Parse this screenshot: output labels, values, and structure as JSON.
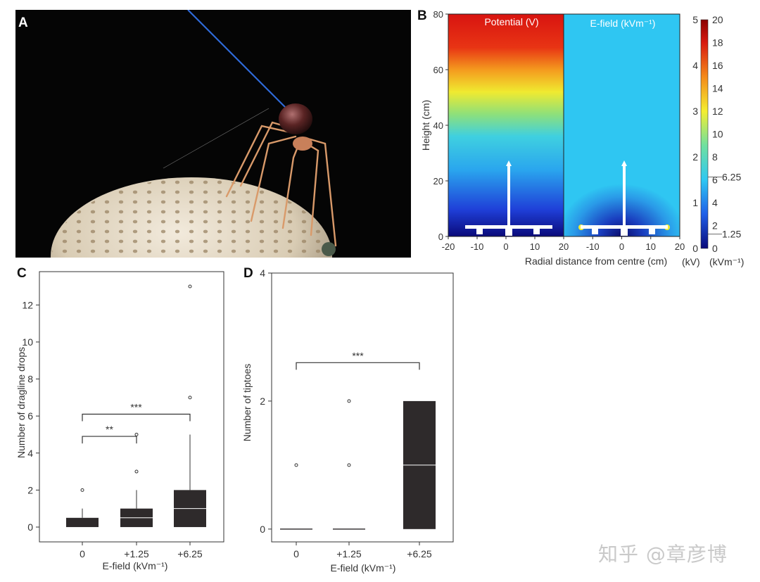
{
  "panels": {
    "a": "A",
    "b": "B",
    "c": "C",
    "d": "D"
  },
  "chart_data": [
    {
      "type": "heatmap",
      "panel": "B",
      "subplots": [
        "Potential (V)",
        "E-field (kVm⁻¹)"
      ],
      "xlabel": "Radial distance from centre (cm)",
      "ylabel": "Height (cm)",
      "x_ticks": [
        "-20",
        "-10",
        "0",
        "10",
        "20"
      ],
      "x_ticks_right": [
        "-10",
        "0",
        "10",
        "20"
      ],
      "y_ticks": [
        "0",
        "20",
        "40",
        "60",
        "80"
      ],
      "xlim": [
        -20,
        20
      ],
      "ylim": [
        0,
        80
      ],
      "colorbar": {
        "inner_ticks": [
          "0",
          "1",
          "2",
          "3",
          "4",
          "5"
        ],
        "outer_ticks": [
          "0",
          "2",
          "4",
          "6",
          "8",
          "10",
          "12",
          "14",
          "16",
          "18",
          "20"
        ],
        "marks": [
          "6.25",
          "1.25"
        ],
        "unit_left": "(kV)",
        "unit_right": "(kVm⁻¹)",
        "colors": [
          "#0a0a7a",
          "#1f5fe8",
          "#2fc8f2",
          "#8be07a",
          "#f4ee30",
          "#f48a1a",
          "#d81a10",
          "#8a0000"
        ]
      }
    },
    {
      "type": "box",
      "panel": "C",
      "ylabel": "Number of dragline drops",
      "xlabel": "E-field (kVm⁻¹)",
      "categories": [
        "0",
        "+1.25",
        "+6.25"
      ],
      "ylim": [
        -0.8,
        13.8
      ],
      "y_ticks": [
        "0",
        "2",
        "4",
        "6",
        "8",
        "10",
        "12"
      ],
      "boxes": [
        {
          "q1": 0,
          "median": 0,
          "q3": 0.5,
          "whisker_low": 0,
          "whisker_high": 1,
          "outliers": [
            2
          ]
        },
        {
          "q1": 0,
          "median": 0.5,
          "q3": 1,
          "whisker_low": 0,
          "whisker_high": 2,
          "outliers": [
            3,
            5
          ]
        },
        {
          "q1": 0,
          "median": 1,
          "q3": 2,
          "whisker_low": 0,
          "whisker_high": 5,
          "outliers": [
            7,
            13
          ]
        }
      ],
      "significance": [
        {
          "from": 0,
          "to": 1,
          "label": "**",
          "y": 4.9
        },
        {
          "from": 0,
          "to": 2,
          "label": "***",
          "y": 6.1
        }
      ]
    },
    {
      "type": "box",
      "panel": "D",
      "ylabel": "Number of tiptoes",
      "xlabel": "E-field (kVm⁻¹)",
      "categories": [
        "0",
        "+1.25",
        "+6.25"
      ],
      "ylim": [
        -0.2,
        4
      ],
      "y_ticks": [
        "0",
        "2",
        "4"
      ],
      "boxes": [
        {
          "q1": 0,
          "median": 0,
          "q3": 0,
          "whisker_low": 0,
          "whisker_high": 0,
          "outliers": [
            1
          ]
        },
        {
          "q1": 0,
          "median": 0,
          "q3": 0,
          "whisker_low": 0,
          "whisker_high": 0,
          "outliers": [
            1,
            2
          ]
        },
        {
          "q1": 0,
          "median": 1,
          "q3": 2,
          "whisker_low": 0,
          "whisker_high": 2,
          "outliers": []
        }
      ],
      "significance": [
        {
          "from": 0,
          "to": 2,
          "label": "***",
          "y": 2.6
        }
      ]
    }
  ],
  "watermark": "知乎 @章彦博",
  "photo_icon": "spider-on-dome-photo"
}
